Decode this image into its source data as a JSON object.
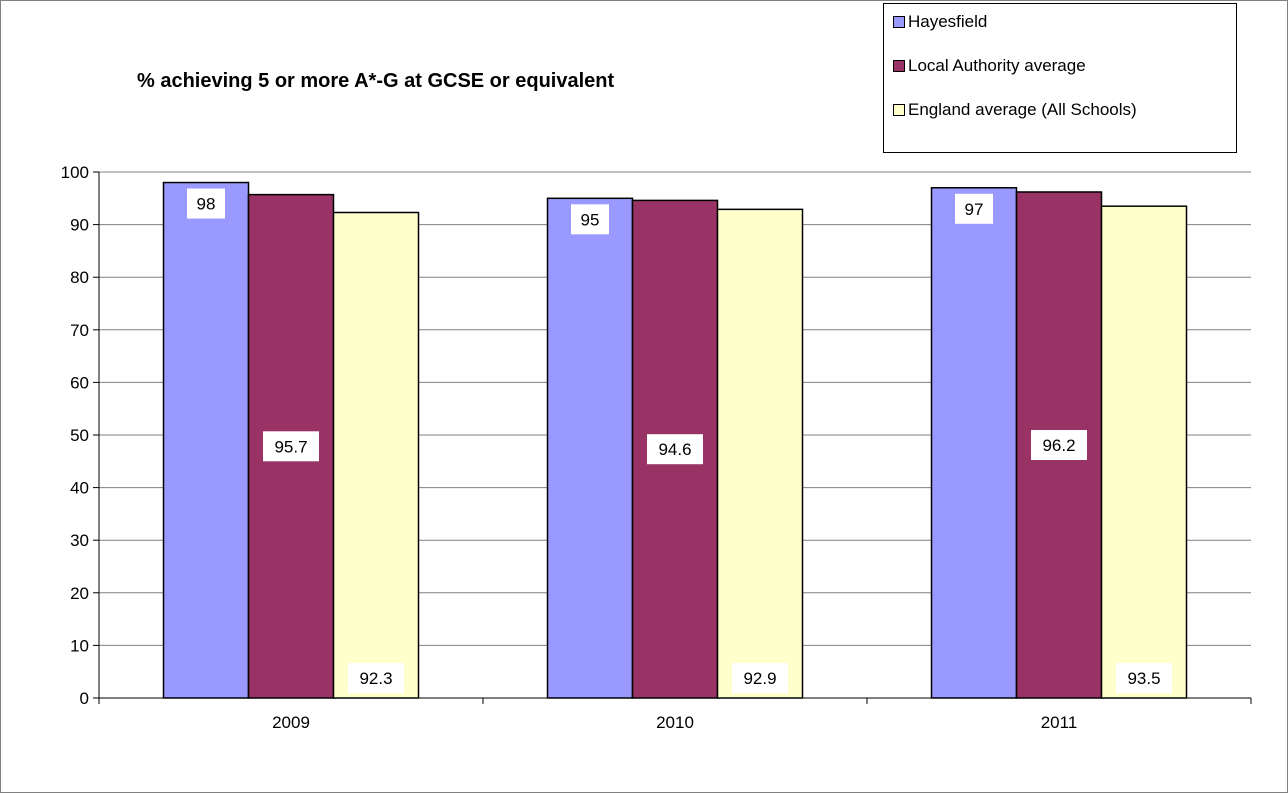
{
  "chart_data": {
    "type": "bar",
    "title": "% achieving 5 or more A*-G at GCSE or equivalent",
    "xlabel": "",
    "ylabel": "",
    "categories": [
      "2009",
      "2010",
      "2011"
    ],
    "ylim": [
      0,
      100
    ],
    "yticks": [
      0,
      10,
      20,
      30,
      40,
      50,
      60,
      70,
      80,
      90,
      100
    ],
    "grid": true,
    "legend_position": "top-right",
    "series": [
      {
        "name": "Hayesfield",
        "color": "#9999ff",
        "values": [
          98,
          95,
          97
        ],
        "labels": [
          "98",
          "95",
          "97"
        ],
        "label_position": "inside-top"
      },
      {
        "name": "Local Authority average",
        "color": "#993366",
        "values": [
          95.7,
          94.6,
          96.2
        ],
        "labels": [
          "95.7",
          "94.6",
          "96.2"
        ],
        "label_position": "center"
      },
      {
        "name": "England average (All Schools)",
        "color": "#ffffcc",
        "values": [
          92.3,
          92.9,
          93.5
        ],
        "labels": [
          "92.3",
          "92.9",
          "93.5"
        ],
        "label_position": "inside-base"
      }
    ]
  }
}
